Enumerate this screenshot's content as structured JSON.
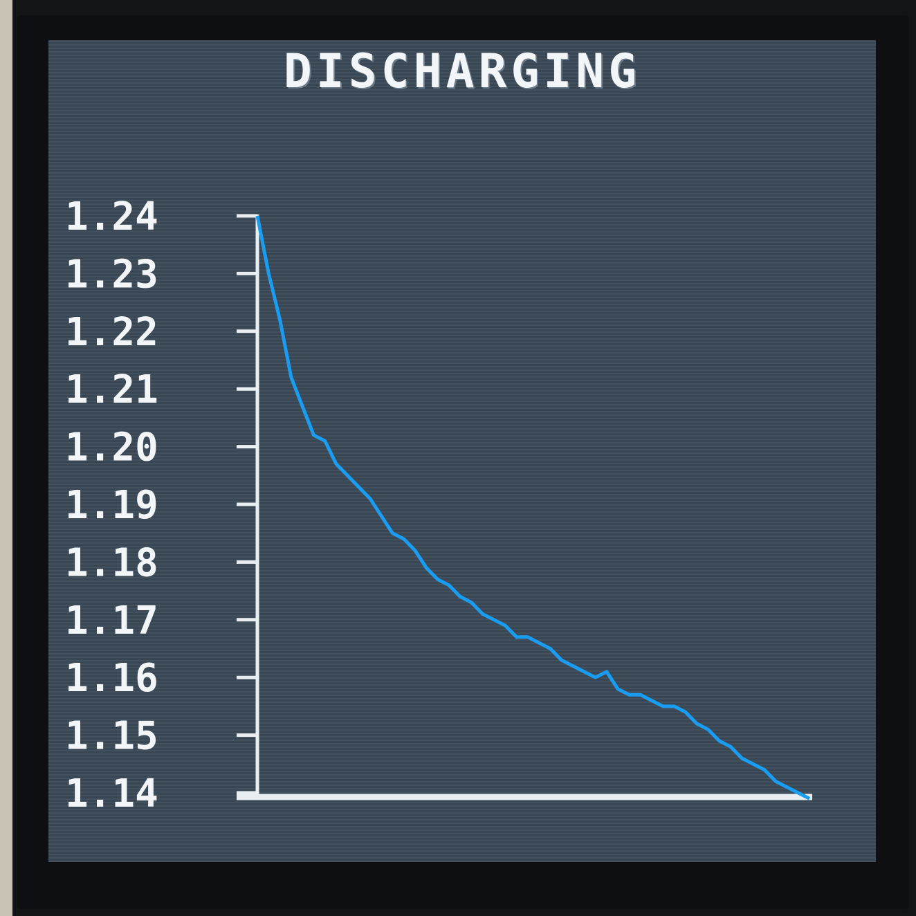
{
  "screen": {
    "title": "DISCHARGING"
  },
  "colors": {
    "background": "#3c4a58",
    "axis": "#e8eef2",
    "line": "#1a9cf0",
    "text": "#f2f6f8"
  },
  "chart_data": {
    "type": "line",
    "title": "DISCHARGING",
    "xlabel": "",
    "ylabel": "",
    "ylim": [
      1.14,
      1.24
    ],
    "yticks": [
      "1.24",
      "1.23",
      "1.22",
      "1.21",
      "1.20",
      "1.19",
      "1.18",
      "1.17",
      "1.16",
      "1.15",
      "1.14"
    ],
    "grid": false,
    "series": [
      {
        "values": [
          1.24,
          1.23,
          1.222,
          1.212,
          1.207,
          1.202,
          1.201,
          1.197,
          1.195,
          1.193,
          1.191,
          1.188,
          1.185,
          1.184,
          1.182,
          1.179,
          1.177,
          1.176,
          1.174,
          1.173,
          1.171,
          1.17,
          1.169,
          1.167,
          1.167,
          1.166,
          1.165,
          1.163,
          1.162,
          1.161,
          1.16,
          1.161,
          1.158,
          1.157,
          1.157,
          1.156,
          1.155,
          1.155,
          1.154,
          1.152,
          1.151,
          1.149,
          1.148,
          1.146,
          1.145,
          1.144,
          1.142,
          1.141,
          1.14,
          1.139
        ]
      }
    ]
  }
}
